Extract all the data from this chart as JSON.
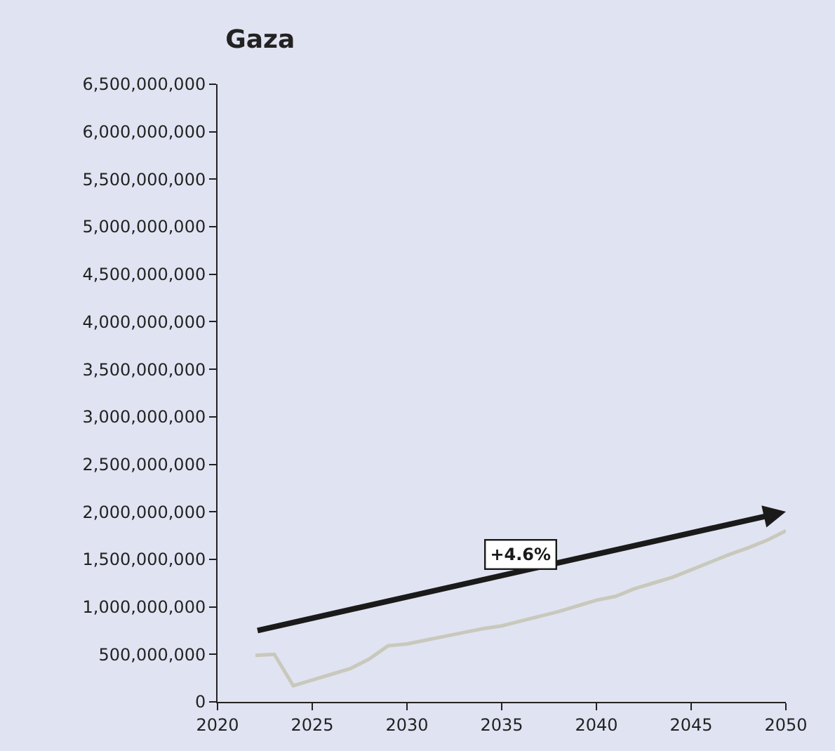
{
  "chart_data": {
    "type": "line",
    "title": "Gaza",
    "x": [
      2022,
      2023,
      2024,
      2025,
      2026,
      2027,
      2028,
      2029,
      2030,
      2031,
      2032,
      2033,
      2034,
      2035,
      2036,
      2037,
      2038,
      2039,
      2040,
      2041,
      2042,
      2043,
      2044,
      2045,
      2046,
      2047,
      2048,
      2049,
      2050
    ],
    "series": [
      {
        "color": "#c8c8bc",
        "values": [
          490000000,
          500000000,
          170000000,
          230000000,
          290000000,
          350000000,
          450000000,
          590000000,
          610000000,
          650000000,
          690000000,
          730000000,
          770000000,
          800000000,
          850000000,
          900000000,
          950000000,
          1010000000,
          1070000000,
          1110000000,
          1190000000,
          1250000000,
          1310000000,
          1390000000,
          1470000000,
          1550000000,
          1620000000,
          1700000000,
          1800000000
        ]
      }
    ],
    "annotations": [
      "+4.6%"
    ],
    "xlim": [
      2020,
      2050
    ],
    "xticks": [
      2020,
      2025,
      2030,
      2035,
      2040,
      2045,
      2050
    ],
    "ylim": [
      0,
      6500000000
    ],
    "yticks": [
      {
        "value": 0,
        "label": "0"
      },
      {
        "value": 500000000,
        "label": "500,000,000"
      },
      {
        "value": 1000000000,
        "label": "1,000,000,000"
      },
      {
        "value": 1500000000,
        "label": "1,500,000,000"
      },
      {
        "value": 2000000000,
        "label": "2,000,000,000"
      },
      {
        "value": 2500000000,
        "label": "2,500,000,000"
      },
      {
        "value": 3000000000,
        "label": "3,000,000,000"
      },
      {
        "value": 3500000000,
        "label": "3,500,000,000"
      },
      {
        "value": 4000000000,
        "label": "4,000,000,000"
      },
      {
        "value": 4500000000,
        "label": "4,500,000,000"
      },
      {
        "value": 5000000000,
        "label": "5,000,000,000"
      },
      {
        "value": 5500000000,
        "label": "5,500,000,000"
      },
      {
        "value": 6000000000,
        "label": "6,000,000,000"
      },
      {
        "value": 6500000000,
        "label": "6,500,000,000"
      }
    ],
    "grid": false,
    "marker": "none",
    "line_style": "solid"
  }
}
